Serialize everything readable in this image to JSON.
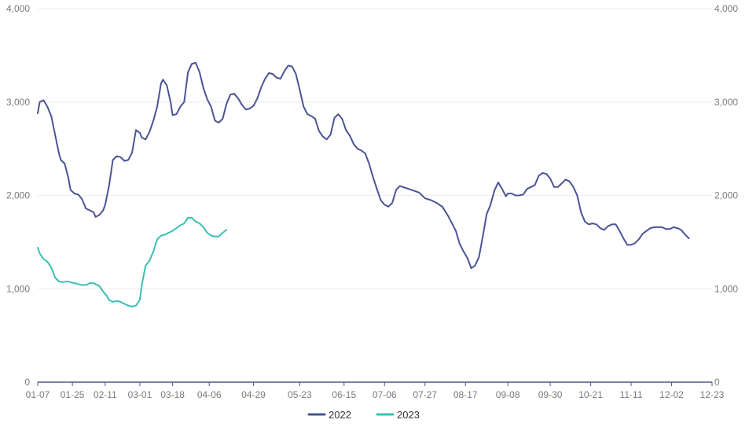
{
  "chart_data": {
    "type": "line",
    "title": "",
    "xlabel": "",
    "ylabel": "",
    "ylim": [
      0,
      4000
    ],
    "y_ticks": [
      0,
      1000,
      2000,
      3000,
      4000
    ],
    "y_tick_labels": [
      "0",
      "1,000",
      "2,000",
      "3,000",
      "4,000"
    ],
    "dual_y_axis": true,
    "grid": "horizontal",
    "legend_position": "bottom-center",
    "x_ticks": [
      "01-07",
      "01-25",
      "02-11",
      "03-01",
      "03-18",
      "04-06",
      "04-29",
      "05-23",
      "06-15",
      "07-06",
      "07-27",
      "08-17",
      "09-08",
      "09-30",
      "10-21",
      "11-11",
      "12-02",
      "12-23"
    ],
    "series": [
      {
        "name": "2022",
        "color": "#4a5494",
        "points": [
          [
            "01-07",
            2880
          ],
          [
            "01-08",
            3000
          ],
          [
            "01-10",
            3020
          ],
          [
            "01-12",
            2950
          ],
          [
            "01-14",
            2850
          ],
          [
            "01-16",
            2650
          ],
          [
            "01-18",
            2450
          ],
          [
            "01-19",
            2380
          ],
          [
            "01-21",
            2340
          ],
          [
            "01-23",
            2180
          ],
          [
            "01-24",
            2060
          ],
          [
            "01-26",
            2020
          ],
          [
            "01-28",
            2010
          ],
          [
            "01-30",
            1960
          ],
          [
            "02-01",
            1860
          ],
          [
            "02-03",
            1840
          ],
          [
            "02-05",
            1820
          ],
          [
            "02-06",
            1770
          ],
          [
            "02-08",
            1790
          ],
          [
            "02-10",
            1840
          ],
          [
            "02-11",
            1900
          ],
          [
            "02-13",
            2100
          ],
          [
            "02-15",
            2380
          ],
          [
            "02-17",
            2420
          ],
          [
            "02-19",
            2410
          ],
          [
            "02-21",
            2370
          ],
          [
            "02-23",
            2380
          ],
          [
            "02-25",
            2460
          ],
          [
            "02-27",
            2700
          ],
          [
            "02-29",
            2670
          ],
          [
            "03-02",
            2620
          ],
          [
            "03-04",
            2600
          ],
          [
            "03-06",
            2680
          ],
          [
            "03-08",
            2800
          ],
          [
            "03-10",
            2950
          ],
          [
            "03-12",
            3200
          ],
          [
            "03-13",
            3240
          ],
          [
            "03-15",
            3180
          ],
          [
            "03-17",
            3000
          ],
          [
            "03-18",
            2860
          ],
          [
            "03-20",
            2870
          ],
          [
            "03-22",
            2950
          ],
          [
            "03-24",
            3000
          ],
          [
            "03-26",
            3320
          ],
          [
            "03-28",
            3410
          ],
          [
            "03-30",
            3420
          ],
          [
            "04-01",
            3320
          ],
          [
            "04-03",
            3150
          ],
          [
            "04-05",
            3030
          ],
          [
            "04-07",
            2950
          ],
          [
            "04-09",
            2800
          ],
          [
            "04-11",
            2780
          ],
          [
            "04-13",
            2820
          ],
          [
            "04-15",
            2980
          ],
          [
            "04-17",
            3080
          ],
          [
            "04-19",
            3090
          ],
          [
            "04-21",
            3040
          ],
          [
            "04-23",
            2970
          ],
          [
            "04-25",
            2920
          ],
          [
            "04-27",
            2930
          ],
          [
            "04-29",
            2960
          ],
          [
            "05-01",
            3040
          ],
          [
            "05-03",
            3160
          ],
          [
            "05-05",
            3250
          ],
          [
            "05-07",
            3310
          ],
          [
            "05-09",
            3300
          ],
          [
            "05-11",
            3260
          ],
          [
            "05-13",
            3250
          ],
          [
            "05-15",
            3330
          ],
          [
            "05-17",
            3390
          ],
          [
            "05-19",
            3380
          ],
          [
            "05-21",
            3300
          ],
          [
            "05-23",
            3130
          ],
          [
            "05-25",
            2950
          ],
          [
            "05-27",
            2870
          ],
          [
            "05-29",
            2850
          ],
          [
            "05-31",
            2820
          ],
          [
            "06-02",
            2690
          ],
          [
            "06-04",
            2630
          ],
          [
            "06-06",
            2600
          ],
          [
            "06-08",
            2650
          ],
          [
            "06-10",
            2830
          ],
          [
            "06-12",
            2870
          ],
          [
            "06-14",
            2820
          ],
          [
            "06-16",
            2700
          ],
          [
            "06-18",
            2640
          ],
          [
            "06-20",
            2550
          ],
          [
            "06-22",
            2500
          ],
          [
            "06-24",
            2480
          ],
          [
            "06-26",
            2450
          ],
          [
            "06-28",
            2340
          ],
          [
            "06-30",
            2200
          ],
          [
            "07-02",
            2070
          ],
          [
            "07-04",
            1950
          ],
          [
            "07-06",
            1900
          ],
          [
            "07-08",
            1880
          ],
          [
            "07-10",
            1920
          ],
          [
            "07-12",
            2060
          ],
          [
            "07-14",
            2100
          ],
          [
            "07-17",
            2080
          ],
          [
            "07-20",
            2060
          ],
          [
            "07-24",
            2030
          ],
          [
            "07-27",
            1970
          ],
          [
            "07-30",
            1950
          ],
          [
            "08-02",
            1920
          ],
          [
            "08-05",
            1880
          ],
          [
            "08-08",
            1780
          ],
          [
            "08-10",
            1700
          ],
          [
            "08-12",
            1620
          ],
          [
            "08-14",
            1480
          ],
          [
            "08-16",
            1400
          ],
          [
            "08-18",
            1330
          ],
          [
            "08-20",
            1220
          ],
          [
            "08-22",
            1250
          ],
          [
            "08-24",
            1340
          ],
          [
            "08-26",
            1560
          ],
          [
            "08-28",
            1800
          ],
          [
            "08-30",
            1900
          ],
          [
            "09-01",
            2050
          ],
          [
            "09-03",
            2140
          ],
          [
            "09-05",
            2070
          ],
          [
            "09-07",
            1990
          ],
          [
            "09-08",
            2020
          ],
          [
            "09-10",
            2020
          ],
          [
            "09-12",
            2000
          ],
          [
            "09-14",
            2000
          ],
          [
            "09-16",
            2010
          ],
          [
            "09-18",
            2070
          ],
          [
            "09-20",
            2090
          ],
          [
            "09-22",
            2110
          ],
          [
            "09-24",
            2210
          ],
          [
            "09-26",
            2240
          ],
          [
            "09-28",
            2230
          ],
          [
            "09-30",
            2180
          ],
          [
            "10-02",
            2090
          ],
          [
            "10-04",
            2090
          ],
          [
            "10-06",
            2130
          ],
          [
            "10-08",
            2170
          ],
          [
            "10-10",
            2150
          ],
          [
            "10-12",
            2090
          ],
          [
            "10-14",
            2000
          ],
          [
            "10-16",
            1820
          ],
          [
            "10-18",
            1720
          ],
          [
            "10-20",
            1690
          ],
          [
            "10-22",
            1700
          ],
          [
            "10-24",
            1690
          ],
          [
            "10-26",
            1650
          ],
          [
            "10-28",
            1630
          ],
          [
            "10-30",
            1670
          ],
          [
            "11-01",
            1690
          ],
          [
            "11-03",
            1690
          ],
          [
            "11-05",
            1620
          ],
          [
            "11-07",
            1540
          ],
          [
            "11-09",
            1470
          ],
          [
            "11-11",
            1470
          ],
          [
            "11-13",
            1490
          ],
          [
            "11-15",
            1530
          ],
          [
            "11-17",
            1590
          ],
          [
            "11-19",
            1620
          ],
          [
            "11-21",
            1650
          ],
          [
            "11-23",
            1660
          ],
          [
            "11-25",
            1660
          ],
          [
            "11-27",
            1660
          ],
          [
            "11-29",
            1640
          ],
          [
            "12-01",
            1640
          ],
          [
            "12-03",
            1660
          ],
          [
            "12-05",
            1650
          ],
          [
            "12-07",
            1630
          ],
          [
            "12-09",
            1580
          ],
          [
            "12-11",
            1540
          ]
        ]
      },
      {
        "name": "2023",
        "color": "#3bbfb3",
        "points": [
          [
            "01-07",
            1440
          ],
          [
            "01-08",
            1380
          ],
          [
            "01-10",
            1320
          ],
          [
            "01-12",
            1290
          ],
          [
            "01-14",
            1230
          ],
          [
            "01-16",
            1120
          ],
          [
            "01-18",
            1080
          ],
          [
            "01-20",
            1070
          ],
          [
            "01-22",
            1080
          ],
          [
            "01-24",
            1070
          ],
          [
            "01-26",
            1060
          ],
          [
            "01-28",
            1050
          ],
          [
            "01-30",
            1040
          ],
          [
            "02-01",
            1040
          ],
          [
            "02-03",
            1060
          ],
          [
            "02-05",
            1060
          ],
          [
            "02-06",
            1050
          ],
          [
            "02-08",
            1030
          ],
          [
            "02-10",
            970
          ],
          [
            "02-12",
            920
          ],
          [
            "02-13",
            880
          ],
          [
            "02-15",
            860
          ],
          [
            "02-17",
            870
          ],
          [
            "02-19",
            860
          ],
          [
            "02-21",
            840
          ],
          [
            "02-23",
            820
          ],
          [
            "02-25",
            810
          ],
          [
            "02-27",
            820
          ],
          [
            "02-29",
            880
          ],
          [
            "03-02",
            1040
          ],
          [
            "03-04",
            1250
          ],
          [
            "03-06",
            1300
          ],
          [
            "03-08",
            1400
          ],
          [
            "03-10",
            1530
          ],
          [
            "03-12",
            1570
          ],
          [
            "03-14",
            1580
          ],
          [
            "03-16",
            1600
          ],
          [
            "03-18",
            1620
          ],
          [
            "03-20",
            1650
          ],
          [
            "03-22",
            1680
          ],
          [
            "03-24",
            1700
          ],
          [
            "03-26",
            1760
          ],
          [
            "03-28",
            1760
          ],
          [
            "03-30",
            1720
          ],
          [
            "04-01",
            1700
          ],
          [
            "04-03",
            1660
          ],
          [
            "04-05",
            1600
          ],
          [
            "04-07",
            1570
          ],
          [
            "04-09",
            1560
          ],
          [
            "04-11",
            1560
          ],
          [
            "04-13",
            1600
          ],
          [
            "04-15",
            1630
          ]
        ]
      }
    ]
  }
}
